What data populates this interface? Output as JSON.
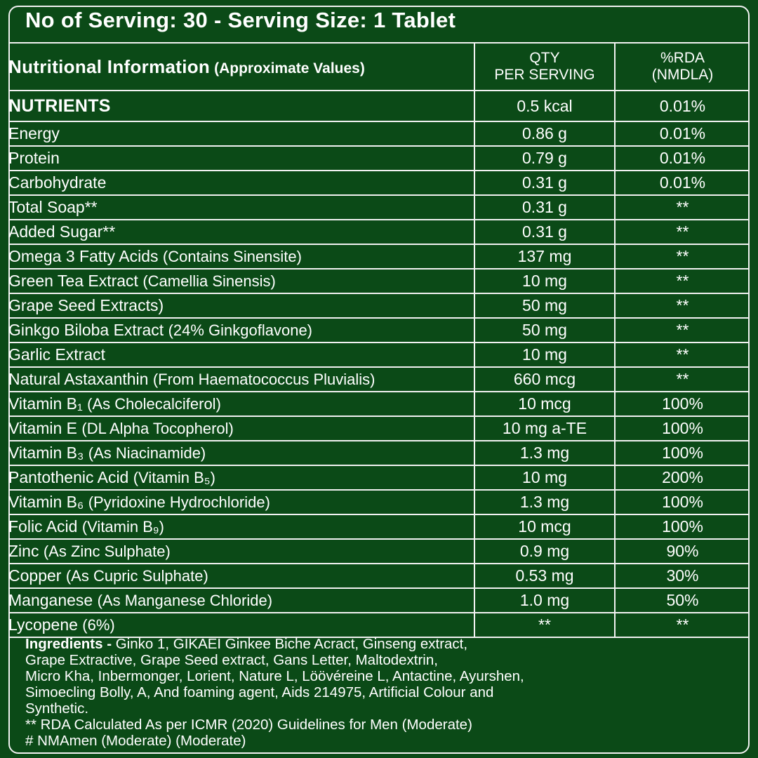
{
  "title": "No of Serving: 30 - Serving Size: 1 Tablet",
  "table": {
    "header": {
      "title": "Nutritional Information",
      "subtitle": "(Approximate Values)",
      "col_qty_1": "QTY",
      "col_qty_2": "PER SERVING",
      "col_rda_1": "%RDA",
      "col_rda_2": "(NMDLA)"
    },
    "nutrients_label": "NUTRIENTS",
    "nutrients_qty": "0.5 kcal",
    "nutrients_rda": "0.01%",
    "rows": [
      {
        "name": "Energy",
        "note": "",
        "qty": "0.86 g",
        "rda": "0.01%"
      },
      {
        "name": "Protein",
        "note": "",
        "qty": "0.79 g",
        "rda": "0.01%"
      },
      {
        "name": "Carbohydrate",
        "note": "",
        "qty": "0.31 g",
        "rda": "0.01%"
      },
      {
        "name": "Total Soap**",
        "note": "",
        "qty": "0.31 g",
        "rda": "**"
      },
      {
        "name": "Added Sugar**",
        "note": "",
        "qty": "0.31 g",
        "rda": "**"
      },
      {
        "name": "Omega 3 Fatty Acids",
        "note": "(Contains Sinensite)",
        "qty": "137 mg",
        "rda": "**"
      },
      {
        "name": "Green Tea Extract",
        "note": "(Camellia Sinensis)",
        "qty": "10 mg",
        "rda": "**"
      },
      {
        "name": "Grape Seed Extracts)",
        "note": "",
        "qty": "50 mg",
        "rda": "**"
      },
      {
        "name": "Ginkgo Biloba Extract",
        "note": "(24% Ginkgoflavone)",
        "qty": "50 mg",
        "rda": "**"
      },
      {
        "name": "Garlic Extract",
        "note": "",
        "qty": "10 mg",
        "rda": "**"
      },
      {
        "name": "Natural Astaxanthin",
        "note": "(From Haematococcus Pluvialis)",
        "qty": "660 mcg",
        "rda": "**"
      },
      {
        "name": "Vitamin B₁",
        "note": "(As Cholecalciferol)",
        "qty": "10 mcg",
        "rda": "100%"
      },
      {
        "name": "Vitamin E",
        "note": "(DL Alpha Tocopherol)",
        "qty": "10 mg a-TE",
        "rda": "100%"
      },
      {
        "name": "Vitamin B₃",
        "note": "(As Niacinamide)",
        "qty": "1.3 mg",
        "rda": "100%"
      },
      {
        "name": "Pantothenic Acid",
        "note": "(Vitamin B₅)",
        "qty": "10 mg",
        "rda": "200%"
      },
      {
        "name": "Vitamin B₆",
        "note": "(Pyridoxine Hydrochloride)",
        "qty": "1.3 mg",
        "rda": "100%"
      },
      {
        "name": "Folic Acid",
        "note": "(Vitamin B₉)",
        "qty": "10 mcg",
        "rda": "100%"
      },
      {
        "name": "Zinc",
        "note": "(As Zinc Sulphate)",
        "qty": "0.9 mg",
        "rda": "90%"
      },
      {
        "name": "Copper",
        "note": "(As Cupric Sulphate)",
        "qty": "0.53 mg",
        "rda": "30%"
      },
      {
        "name": "Manganese",
        "note": "(As Manganese Chloride)",
        "qty": "1.0 mg",
        "rda": "50%"
      },
      {
        "name": "Lycopene",
        "note": "(6%)",
        "qty": "**",
        "rda": "**"
      }
    ]
  },
  "ingredients": {
    "label": "Ingredients",
    "separator": " -  ",
    "lines": [
      "Ginko 1, GIKAEI Ginkee Biche Acract, Ginseng extract,",
      "Grape Extractive, Grape Seed extract, Gans Letter, Maltodextrin,",
      "Micro Kha, Inbermonger, Lorient, Nature L, Löövéreine L, Antactine, Ayurshen,",
      "Simoecling Bolly, A, And foaming agent, Aids 214975, Artificial Colour and",
      "Synthetic."
    ],
    "footnote_1": "** RDA Calculated As per ICMR (2020) Guidelines for Men (Moderate)",
    "footnote_2": "# NMAmen (Moderate) (Moderate)"
  },
  "colors": {
    "background": "#0b4a17",
    "border": "#f2f2f2",
    "text": "#ffffff"
  }
}
